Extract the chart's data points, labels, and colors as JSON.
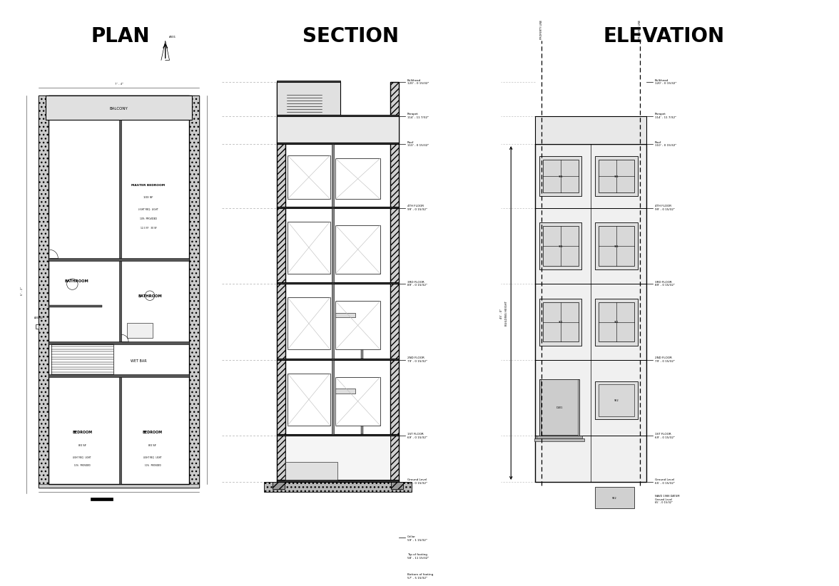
{
  "title_plan": "PLAN",
  "title_section": "SECTION",
  "title_elevation": "ELEVATION",
  "bg_color": "#ffffff",
  "line_color": "#000000",
  "wall_hatch_color": "#c8c8c8",
  "light_gray": "#e8e8e8",
  "medium_gray": "#aaaaaa",
  "title_fontsize": 20,
  "label_fontsize": 4.5,
  "floors_y": {
    "ground": 0.0,
    "1st": 0.115,
    "2nd": 0.305,
    "3rd": 0.495,
    "4th": 0.685,
    "roof": 0.845,
    "parapet": 0.915,
    "bulkhead": 1.0
  },
  "section_floor_labels": [
    [
      1.0,
      "Bulkhead\n120' - 0 15/32\""
    ],
    [
      0.915,
      "Parapet\n114' - 11 7/32\""
    ],
    [
      0.845,
      "Roof\n110' - 0 15/32\""
    ],
    [
      0.685,
      "4TH FLOOR\n99' - 0 15/32\""
    ],
    [
      0.495,
      "3RD FLOOR\n89' - 0 15/32\""
    ],
    [
      0.305,
      "2ND FLOOR\n79' - 0 15/32\""
    ],
    [
      0.115,
      "1ST FLOOR\n69' - 0 15/32\""
    ],
    [
      0.0,
      "Ground Level\n65' - 0 15/32\""
    ]
  ],
  "below_labels": [
    [
      -0.14,
      "Cellar\n59' - 1 15/32\""
    ],
    [
      -0.185,
      "Top of footing\n58' - 11 15/32\""
    ],
    [
      -0.235,
      "Bottom of footing\n57' - 5 15/32\""
    ]
  ]
}
